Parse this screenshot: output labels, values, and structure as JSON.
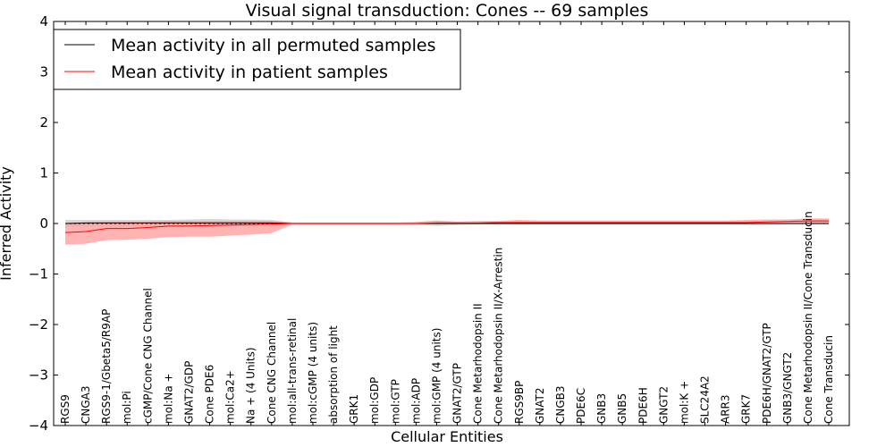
{
  "chart_data": {
    "type": "line",
    "title": "Visual signal transduction: Cones -- 69 samples",
    "xlabel": "Cellular Entities",
    "ylabel": "Inferred Activity",
    "ylim": [
      -4,
      4
    ],
    "yticks": [
      -4,
      -3,
      -2,
      -1,
      0,
      1,
      2,
      3,
      4
    ],
    "ytick_labels": [
      "−4",
      "−3",
      "−2",
      "−1",
      "0",
      "1",
      "2",
      "3",
      "4"
    ],
    "grid": false,
    "legend_position": "top-left",
    "categories": [
      "RGS9",
      "CNGA3",
      "RGS9-1/Gbeta5/R9AP",
      "mol:Pi",
      "cGMP/Cone CNG Channel",
      "mol:Na +",
      "GNAT2/GDP",
      "Cone PDE6",
      "mol:Ca2+",
      "Na + (4 Units)",
      "Cone CNG Channel",
      "mol:all-trans-retinal",
      "mol:cGMP (4 units)",
      "absorption of light",
      "GRK1",
      "mol:GDP",
      "mol:GTP",
      "mol:ADP",
      "mol:GMP (4 units)",
      "GNAT2/GTP",
      "Cone Metarhodopsin II",
      "Cone Metarhodopsin II/X-Arrestin",
      "RGS9BP",
      "GNAT2",
      "CNGB3",
      "PDE6C",
      "GNB3",
      "GNB5",
      "PDE6H",
      "GNGT2",
      "mol:K +",
      "SLC24A2",
      "ARR3",
      "GRK7",
      "PDE6H/GNAT2/GTP",
      "GNB3/GNGT2",
      "Cone Metarhodopsin II/Cone Transducin",
      "Cone Transducin"
    ],
    "series": [
      {
        "name": "Mean activity in all permuted samples",
        "color": "#000000",
        "band_color": "#c8c8c8",
        "values": [
          0.0,
          0.01,
          0.01,
          0.01,
          0.01,
          0.01,
          0.01,
          0.01,
          0.01,
          0.01,
          0.01,
          0.0,
          0.0,
          0.0,
          0.0,
          0.0,
          0.0,
          0.0,
          0.0,
          0.0,
          0.0,
          0.0,
          0.0,
          0.0,
          0.0,
          0.0,
          0.0,
          0.0,
          0.0,
          0.0,
          0.0,
          0.0,
          0.0,
          0.0,
          0.0,
          0.0,
          0.0,
          0.0
        ],
        "lower": [
          -0.06,
          -0.06,
          -0.06,
          -0.06,
          -0.06,
          -0.06,
          -0.06,
          -0.06,
          -0.06,
          -0.06,
          -0.06,
          -0.02,
          -0.02,
          -0.02,
          -0.02,
          -0.02,
          -0.02,
          -0.02,
          -0.05,
          -0.03,
          -0.02,
          -0.02,
          -0.02,
          -0.02,
          -0.02,
          -0.02,
          -0.02,
          -0.02,
          -0.02,
          -0.02,
          -0.02,
          -0.02,
          -0.02,
          -0.02,
          -0.02,
          -0.02,
          -0.02,
          -0.02
        ],
        "upper": [
          0.07,
          0.07,
          0.07,
          0.07,
          0.07,
          0.07,
          0.08,
          0.09,
          0.08,
          0.08,
          0.07,
          0.02,
          0.02,
          0.02,
          0.02,
          0.02,
          0.02,
          0.02,
          0.05,
          0.03,
          0.02,
          0.02,
          0.03,
          0.03,
          0.03,
          0.03,
          0.03,
          0.03,
          0.03,
          0.03,
          0.03,
          0.03,
          0.03,
          0.03,
          0.04,
          0.04,
          0.05,
          0.05
        ]
      },
      {
        "name": "Mean activity in patient samples",
        "color": "#ff0000",
        "band_color": "#ff9999",
        "values": [
          -0.18,
          -0.16,
          -0.1,
          -0.1,
          -0.08,
          -0.05,
          -0.05,
          -0.04,
          -0.03,
          -0.02,
          -0.01,
          0.0,
          0.0,
          0.0,
          0.0,
          0.0,
          0.0,
          0.0,
          0.01,
          0.01,
          0.01,
          0.02,
          0.02,
          0.02,
          0.02,
          0.02,
          0.02,
          0.02,
          0.02,
          0.02,
          0.02,
          0.02,
          0.02,
          0.02,
          0.03,
          0.04,
          0.05,
          0.05
        ],
        "lower": [
          -0.42,
          -0.4,
          -0.33,
          -0.32,
          -0.3,
          -0.27,
          -0.26,
          -0.26,
          -0.24,
          -0.22,
          -0.19,
          -0.02,
          -0.02,
          -0.02,
          -0.02,
          -0.02,
          -0.02,
          -0.02,
          -0.01,
          -0.01,
          -0.01,
          0.0,
          0.0,
          0.0,
          0.0,
          0.0,
          0.0,
          0.0,
          0.0,
          0.0,
          0.0,
          0.0,
          0.0,
          0.0,
          0.01,
          0.02,
          0.02,
          0.02
        ],
        "upper": [
          0.01,
          0.02,
          0.03,
          0.03,
          0.04,
          0.05,
          0.05,
          0.05,
          0.05,
          0.05,
          0.05,
          0.02,
          0.02,
          0.02,
          0.02,
          0.02,
          0.02,
          0.03,
          0.06,
          0.04,
          0.05,
          0.05,
          0.07,
          0.06,
          0.06,
          0.06,
          0.06,
          0.06,
          0.06,
          0.06,
          0.06,
          0.06,
          0.06,
          0.07,
          0.08,
          0.08,
          0.1,
          0.1
        ]
      }
    ]
  }
}
